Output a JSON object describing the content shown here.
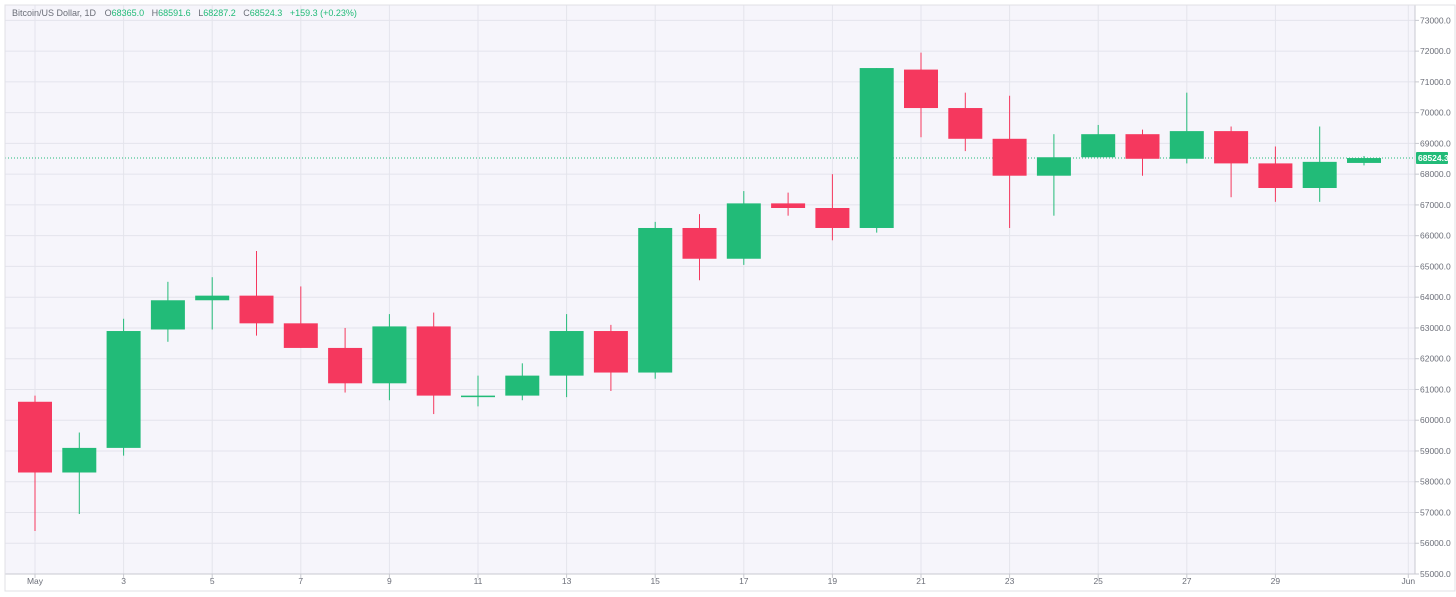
{
  "header": {
    "symbol": "Bitcoin/US Dollar, 1D",
    "open_label": "O",
    "open_value": "68365.0",
    "high_label": "H",
    "high_value": "68591.6",
    "low_label": "L",
    "low_value": "68287.2",
    "close_label": "C",
    "close_value": "68524.3",
    "change": "+159.3 (+0.23%)"
  },
  "colors": {
    "up": "#22bb78",
    "down": "#f5385e",
    "grid": "#e4e4ec",
    "plot_bg": "#f6f5fb",
    "axis_text": "#6b6e78",
    "price_line": "#22bb78"
  },
  "chart_data": {
    "type": "candlestick",
    "title": "",
    "current_price_label": "68524.3",
    "current_price": 68524.3,
    "ylim": [
      55000,
      73500
    ],
    "y_ticks": [
      "55000.0",
      "56000.0",
      "57000.0",
      "58000.0",
      "59000.0",
      "60000.0",
      "61000.0",
      "62000.0",
      "63000.0",
      "64000.0",
      "65000.0",
      "66000.0",
      "67000.0",
      "68000.0",
      "69000.0",
      "70000.0",
      "71000.0",
      "72000.0",
      "73000.0"
    ],
    "x_ticks": [
      {
        "day": 1,
        "label": "May"
      },
      {
        "day": 3,
        "label": "3"
      },
      {
        "day": 5,
        "label": "5"
      },
      {
        "day": 7,
        "label": "7"
      },
      {
        "day": 9,
        "label": "9"
      },
      {
        "day": 11,
        "label": "11"
      },
      {
        "day": 13,
        "label": "13"
      },
      {
        "day": 15,
        "label": "15"
      },
      {
        "day": 17,
        "label": "17"
      },
      {
        "day": 19,
        "label": "19"
      },
      {
        "day": 21,
        "label": "21"
      },
      {
        "day": 23,
        "label": "23"
      },
      {
        "day": 25,
        "label": "25"
      },
      {
        "day": 27,
        "label": "27"
      },
      {
        "day": 29,
        "label": "29"
      },
      {
        "day": 32,
        "label": "Jun"
      }
    ],
    "candles": [
      {
        "day": 1,
        "open": 60600,
        "high": 60800,
        "low": 56400,
        "close": 58300
      },
      {
        "day": 2,
        "open": 58300,
        "high": 59600,
        "low": 56950,
        "close": 59100
      },
      {
        "day": 3,
        "open": 59100,
        "high": 63300,
        "low": 58850,
        "close": 62900
      },
      {
        "day": 4,
        "open": 62950,
        "high": 64500,
        "low": 62550,
        "close": 63900
      },
      {
        "day": 5,
        "open": 63900,
        "high": 64650,
        "low": 62950,
        "close": 64050
      },
      {
        "day": 6,
        "open": 64050,
        "high": 65500,
        "low": 62750,
        "close": 63150
      },
      {
        "day": 7,
        "open": 63150,
        "high": 64350,
        "low": 62350,
        "close": 62350
      },
      {
        "day": 8,
        "open": 62350,
        "high": 63000,
        "low": 60900,
        "close": 61200
      },
      {
        "day": 9,
        "open": 61200,
        "high": 63450,
        "low": 60650,
        "close": 63050
      },
      {
        "day": 10,
        "open": 63050,
        "high": 63500,
        "low": 60200,
        "close": 60800
      },
      {
        "day": 11,
        "open": 60750,
        "high": 61450,
        "low": 60450,
        "close": 60800
      },
      {
        "day": 12,
        "open": 60800,
        "high": 61850,
        "low": 60650,
        "close": 61450
      },
      {
        "day": 13,
        "open": 61450,
        "high": 63450,
        "low": 60750,
        "close": 62900
      },
      {
        "day": 14,
        "open": 62900,
        "high": 63100,
        "low": 60950,
        "close": 61550
      },
      {
        "day": 15,
        "open": 61550,
        "high": 66450,
        "low": 61350,
        "close": 66250
      },
      {
        "day": 16,
        "open": 66250,
        "high": 66700,
        "low": 64550,
        "close": 65250
      },
      {
        "day": 17,
        "open": 65250,
        "high": 67450,
        "low": 65050,
        "close": 67050
      },
      {
        "day": 18,
        "open": 67050,
        "high": 67400,
        "low": 66650,
        "close": 66900
      },
      {
        "day": 19,
        "open": 66900,
        "high": 68000,
        "low": 65850,
        "close": 66250
      },
      {
        "day": 20,
        "open": 66250,
        "high": 71450,
        "low": 66100,
        "close": 71450
      },
      {
        "day": 21,
        "open": 71400,
        "high": 71950,
        "low": 69200,
        "close": 70150
      },
      {
        "day": 22,
        "open": 70150,
        "high": 70650,
        "low": 68750,
        "close": 69150
      },
      {
        "day": 23,
        "open": 69150,
        "high": 70550,
        "low": 66250,
        "close": 67950
      },
      {
        "day": 24,
        "open": 67950,
        "high": 69300,
        "low": 66650,
        "close": 68550
      },
      {
        "day": 25,
        "open": 68550,
        "high": 69600,
        "low": 68550,
        "close": 69300
      },
      {
        "day": 26,
        "open": 69300,
        "high": 69450,
        "low": 67950,
        "close": 68500
      },
      {
        "day": 27,
        "open": 68500,
        "high": 70650,
        "low": 68350,
        "close": 69400
      },
      {
        "day": 28,
        "open": 69400,
        "high": 69550,
        "low": 67250,
        "close": 68350
      },
      {
        "day": 29,
        "open": 68350,
        "high": 68900,
        "low": 67100,
        "close": 67550
      },
      {
        "day": 30,
        "open": 67550,
        "high": 69550,
        "low": 67100,
        "close": 68400
      },
      {
        "day": 31,
        "open": 68365.0,
        "high": 68591.6,
        "low": 68287.2,
        "close": 68524.3
      }
    ]
  }
}
